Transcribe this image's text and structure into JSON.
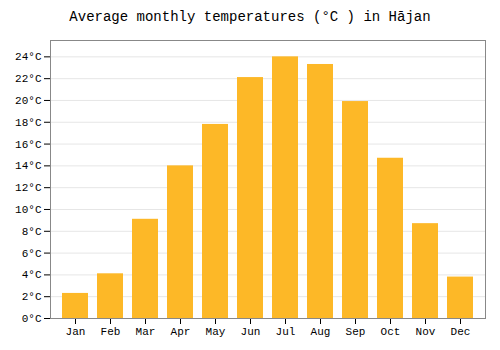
{
  "chart_data": {
    "type": "bar",
    "title": "Average monthly temperatures (°C ) in Hājan",
    "categories": [
      "Jan",
      "Feb",
      "Mar",
      "Apr",
      "May",
      "Jun",
      "Jul",
      "Aug",
      "Sep",
      "Oct",
      "Nov",
      "Dec"
    ],
    "values": [
      2.3,
      4.1,
      9.1,
      14.0,
      17.8,
      22.1,
      24.0,
      23.3,
      19.9,
      14.7,
      8.7,
      3.8
    ],
    "color": "#FDB827",
    "ylim": [
      0,
      25.5
    ],
    "yticks": [
      {
        "value": 0,
        "label": "0°C"
      },
      {
        "value": 2,
        "label": "2°C"
      },
      {
        "value": 4,
        "label": "4°C"
      },
      {
        "value": 6,
        "label": "6°C"
      },
      {
        "value": 8,
        "label": "8°C"
      },
      {
        "value": 10,
        "label": "10°C"
      },
      {
        "value": 12,
        "label": "12°C"
      },
      {
        "value": 14,
        "label": "14°C"
      },
      {
        "value": 16,
        "label": "16°C"
      },
      {
        "value": 18,
        "label": "18°C"
      },
      {
        "value": 20,
        "label": "20°C"
      },
      {
        "value": 22,
        "label": "22°C"
      },
      {
        "value": 24,
        "label": "24°C"
      }
    ],
    "grid": true
  }
}
